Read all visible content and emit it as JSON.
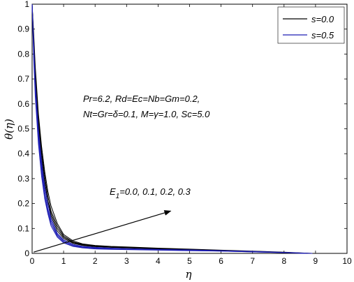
{
  "chart_data": {
    "type": "line",
    "xlabel": "η",
    "ylabel": "θ(η)",
    "xlim": [
      0,
      10
    ],
    "ylim": [
      0,
      1
    ],
    "x_ticks": [
      0,
      1,
      2,
      3,
      4,
      5,
      6,
      7,
      8,
      9,
      10
    ],
    "y_ticks": [
      0,
      0.1,
      0.2,
      0.3,
      0.4,
      0.5,
      0.6,
      0.7,
      0.8,
      0.9,
      1
    ],
    "x_tick_labels": [
      "0",
      "1",
      "2",
      "3",
      "4",
      "5",
      "6",
      "7",
      "8",
      "9",
      "10"
    ],
    "y_tick_labels": [
      "0",
      "0.1",
      "0.2",
      "0.3",
      "0.4",
      "0.5",
      "0.6",
      "0.7",
      "0.8",
      "0.9",
      "1"
    ],
    "grid": false,
    "legend_position": "top-right",
    "legend": [
      {
        "label": "s=0.0",
        "color": "#000000"
      },
      {
        "label": "s=0.5",
        "color": "#1f1fb4"
      }
    ],
    "annotations": [
      "Pr=6.2, Rd=Ec=Nb=Gm=0.2,",
      "Nt=Gr=δ=0.1, M=γ=1.0, Sc=5.0"
    ],
    "arrow_label": {
      "base": "E",
      "subscript": "1",
      "rest": "=0.0, 0.1, 0.2, 0.3"
    },
    "arrow": {
      "from": [
        0.05,
        0.005
      ],
      "to": [
        4.4,
        0.17
      ]
    },
    "series": [
      {
        "group": "s=0.0",
        "color": "#000000",
        "E1": 0.0,
        "x": [
          0,
          0.05,
          0.1,
          0.2,
          0.3,
          0.4,
          0.5,
          0.6,
          0.8,
          1.0,
          1.3,
          1.6,
          2.0,
          2.5,
          3,
          4,
          5,
          6,
          7,
          8,
          8.6
        ],
        "y": [
          1.0,
          0.82,
          0.69,
          0.5,
          0.37,
          0.27,
          0.2,
          0.15,
          0.09,
          0.06,
          0.04,
          0.032,
          0.027,
          0.024,
          0.022,
          0.018,
          0.014,
          0.01,
          0.007,
          0.003,
          0.0
        ]
      },
      {
        "group": "s=0.0",
        "color": "#000000",
        "E1": 0.1,
        "x": [
          0,
          0.05,
          0.1,
          0.2,
          0.3,
          0.4,
          0.5,
          0.6,
          0.8,
          1.0,
          1.3,
          1.6,
          2.0,
          2.5,
          3,
          4,
          5,
          6,
          7,
          8,
          8.7
        ],
        "y": [
          1.0,
          0.84,
          0.71,
          0.52,
          0.39,
          0.29,
          0.21,
          0.16,
          0.1,
          0.065,
          0.043,
          0.034,
          0.028,
          0.025,
          0.023,
          0.019,
          0.015,
          0.011,
          0.008,
          0.004,
          0.0
        ]
      },
      {
        "group": "s=0.0",
        "color": "#000000",
        "E1": 0.2,
        "x": [
          0,
          0.05,
          0.1,
          0.2,
          0.3,
          0.4,
          0.5,
          0.6,
          0.8,
          1.0,
          1.3,
          1.6,
          2.0,
          2.5,
          3,
          4,
          5,
          6,
          7,
          8,
          8.8
        ],
        "y": [
          1.0,
          0.86,
          0.73,
          0.54,
          0.41,
          0.31,
          0.23,
          0.17,
          0.11,
          0.07,
          0.046,
          0.036,
          0.03,
          0.026,
          0.024,
          0.02,
          0.016,
          0.012,
          0.008,
          0.004,
          0.0
        ]
      },
      {
        "group": "s=0.0",
        "color": "#000000",
        "E1": 0.3,
        "x": [
          0,
          0.05,
          0.1,
          0.2,
          0.3,
          0.4,
          0.5,
          0.6,
          0.8,
          1.0,
          1.3,
          1.6,
          2.0,
          2.5,
          3,
          4,
          5,
          6,
          7,
          8,
          8.9
        ],
        "y": [
          1.0,
          0.88,
          0.75,
          0.56,
          0.43,
          0.33,
          0.25,
          0.19,
          0.12,
          0.076,
          0.05,
          0.038,
          0.032,
          0.028,
          0.026,
          0.021,
          0.017,
          0.013,
          0.009,
          0.005,
          0.0
        ]
      },
      {
        "group": "s=0.5",
        "color": "#1f1fb4",
        "E1": 0.0,
        "x": [
          0,
          0.05,
          0.1,
          0.2,
          0.3,
          0.4,
          0.5,
          0.6,
          0.8,
          1.0,
          1.3,
          1.6,
          2.0,
          2.5,
          3,
          4,
          5,
          6,
          7,
          8,
          8.6
        ],
        "y": [
          1.0,
          0.78,
          0.63,
          0.44,
          0.31,
          0.22,
          0.16,
          0.11,
          0.065,
          0.042,
          0.028,
          0.022,
          0.018,
          0.016,
          0.015,
          0.013,
          0.011,
          0.009,
          0.006,
          0.003,
          0.0
        ]
      },
      {
        "group": "s=0.5",
        "color": "#1f1fb4",
        "E1": 0.1,
        "x": [
          0,
          0.05,
          0.1,
          0.2,
          0.3,
          0.4,
          0.5,
          0.6,
          0.8,
          1.0,
          1.3,
          1.6,
          2.0,
          2.5,
          3,
          4,
          5,
          6,
          7,
          8,
          8.7
        ],
        "y": [
          1.0,
          0.8,
          0.65,
          0.46,
          0.33,
          0.23,
          0.17,
          0.12,
          0.07,
          0.046,
          0.03,
          0.024,
          0.02,
          0.018,
          0.016,
          0.014,
          0.012,
          0.009,
          0.006,
          0.003,
          0.0
        ]
      },
      {
        "group": "s=0.5",
        "color": "#1f1fb4",
        "E1": 0.2,
        "x": [
          0,
          0.05,
          0.1,
          0.2,
          0.3,
          0.4,
          0.5,
          0.6,
          0.8,
          1.0,
          1.3,
          1.6,
          2.0,
          2.5,
          3,
          4,
          5,
          6,
          7,
          8,
          8.8
        ],
        "y": [
          1.0,
          0.82,
          0.67,
          0.48,
          0.35,
          0.25,
          0.18,
          0.13,
          0.075,
          0.05,
          0.033,
          0.026,
          0.022,
          0.019,
          0.017,
          0.015,
          0.013,
          0.01,
          0.007,
          0.004,
          0.0
        ]
      },
      {
        "group": "s=0.5",
        "color": "#1f1fb4",
        "E1": 0.3,
        "x": [
          0,
          0.05,
          0.1,
          0.2,
          0.3,
          0.4,
          0.5,
          0.6,
          0.8,
          1.0,
          1.3,
          1.6,
          2.0,
          2.5,
          3,
          4,
          5,
          6,
          7,
          8,
          8.9
        ],
        "y": [
          1.0,
          0.84,
          0.69,
          0.5,
          0.37,
          0.27,
          0.2,
          0.14,
          0.08,
          0.054,
          0.036,
          0.028,
          0.024,
          0.021,
          0.019,
          0.016,
          0.014,
          0.011,
          0.008,
          0.004,
          0.0
        ]
      }
    ]
  }
}
